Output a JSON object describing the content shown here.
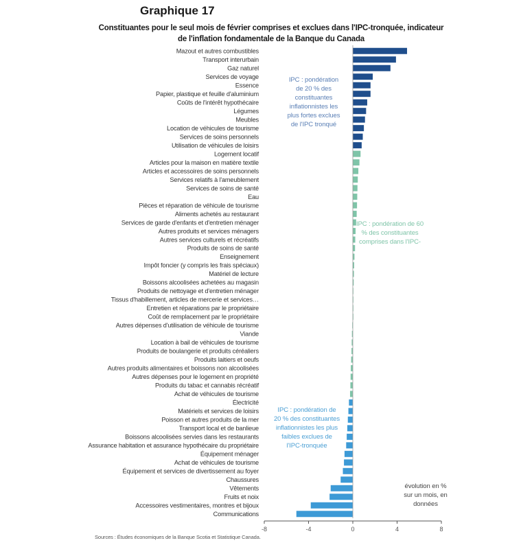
{
  "title": "Graphique 17",
  "subtitle": "Constituantes pour le seul mois de février comprises et exclues dans l'IPC-tronquée, indicateur de l'inflation fondamentale de la Banque du Canada",
  "annotations": {
    "top": "IPC : pondération de 20 % des constituantes inflationnistes les plus fortes exclues de l'IPC tronqué",
    "middle": "IPC : pondération de 60 % des constituantes comprises dans l'IPC-",
    "bottom": "IPC : pondération de 20 % des constituantes inflationnistes les plus faibles exclues de l'IPC-tronquée",
    "unit": "évolution en % sur un mois, en données"
  },
  "source": "Sources : Études économiques de la Banque Scotia et Statistique Canada.",
  "colors": {
    "top_group": "#1f4e8c",
    "middle_group": "#7fc4a8",
    "bottom_group": "#3d9ad6",
    "axis": "#555555"
  },
  "chart_data": {
    "type": "bar",
    "orientation": "horizontal",
    "title": "Graphique 17",
    "xlabel": "",
    "ylabel": "",
    "xlim": [
      -8,
      8
    ],
    "xticks": [
      -8,
      -4,
      0,
      4,
      8
    ],
    "grid": false,
    "categories": [
      "Mazout et autres combustibles",
      "Transport interurbain",
      "Gaz naturel",
      "Services de voyage",
      "Essence",
      "Papier, plastique et feuille d'aluminium",
      "Coûts de l'intérêt hypothécaire",
      "Légumes",
      "Meubles",
      "Location de véhicules de tourisme",
      "Services de soins personnels",
      "Utilisation de véhicules de loisirs",
      "Logement locatif",
      "Articles pour la maison en matière textile",
      "Articles et accessoires de soins personnels",
      "Services relatifs à l'ameublement",
      "Services de soins de santé",
      "Eau",
      "Pièces et réparation de véhicule de tourisme",
      "Aliments achetés au restaurant",
      "Services de garde d'enfants et d'entretien ménager",
      "Autres produits et services ménagers",
      "Autres services culturels et récréatifs",
      "Produits de soins de santé",
      "Enseignement",
      "Impôt foncier (y compris les frais spéciaux)",
      "Matériel de lecture",
      "Boissons alcoolisées achetées au magasin",
      "Produits de nettoyage et d'entretien ménager",
      "Tissus d'habillement, articles de mercerie et services…",
      "Entretien et réparations par le propriétaire",
      "Coût de remplacement par le propriétaire",
      "Autres dépenses d'utilisation de véhicule de tourisme",
      "Viande",
      "Location à bail de véhicules de tourisme",
      "Produits de boulangerie et produits céréaliers",
      "Produits laitiers et oeufs",
      "Autres produits alimentaires et boissons non alcoolisées",
      "Autres dépenses pour le logement en propriété",
      "Produits du tabac et cannabis récréatif",
      "Achat de véhicules de tourisme",
      "Électricité",
      "Matériels et services de loisirs",
      "Poisson et autres produits de la mer",
      "Transport local et de banlieue",
      "Boissons alcoolisées servies dans les restaurants",
      "Assurance habitation et assurance hypothécaire du propriétaire",
      "Équipement ménager",
      "Achat de véhicules de tourisme",
      "Équipement et services de divertissement au foyer",
      "Chaussures",
      "Vêtements",
      "Fruits et noix",
      "Accessoires vestimentaires, montres et bijoux",
      "Communications"
    ],
    "values": [
      4.9,
      3.9,
      3.4,
      1.8,
      1.6,
      1.6,
      1.3,
      1.2,
      1.1,
      1.0,
      0.9,
      0.8,
      0.7,
      0.6,
      0.5,
      0.45,
      0.42,
      0.4,
      0.38,
      0.35,
      0.3,
      0.25,
      0.22,
      0.2,
      0.15,
      0.12,
      0.1,
      0.08,
      0.05,
      0.03,
      0.02,
      0.01,
      -0.05,
      -0.08,
      -0.1,
      -0.12,
      -0.15,
      -0.18,
      -0.2,
      -0.22,
      -0.25,
      -0.35,
      -0.4,
      -0.45,
      -0.5,
      -0.55,
      -0.6,
      -0.75,
      -0.8,
      -0.9,
      -1.1,
      -2.0,
      -2.1,
      -3.8,
      -5.1
    ],
    "groups": [
      "top",
      "top",
      "top",
      "top",
      "top",
      "top",
      "top",
      "top",
      "top",
      "top",
      "top",
      "top",
      "middle",
      "middle",
      "middle",
      "middle",
      "middle",
      "middle",
      "middle",
      "middle",
      "middle",
      "middle",
      "middle",
      "middle",
      "middle",
      "middle",
      "middle",
      "middle",
      "middle",
      "middle",
      "middle",
      "middle",
      "middle",
      "middle",
      "middle",
      "middle",
      "middle",
      "middle",
      "middle",
      "middle",
      "middle",
      "bottom",
      "bottom",
      "bottom",
      "bottom",
      "bottom",
      "bottom",
      "bottom",
      "bottom",
      "bottom",
      "bottom",
      "bottom",
      "bottom",
      "bottom",
      "bottom"
    ]
  }
}
